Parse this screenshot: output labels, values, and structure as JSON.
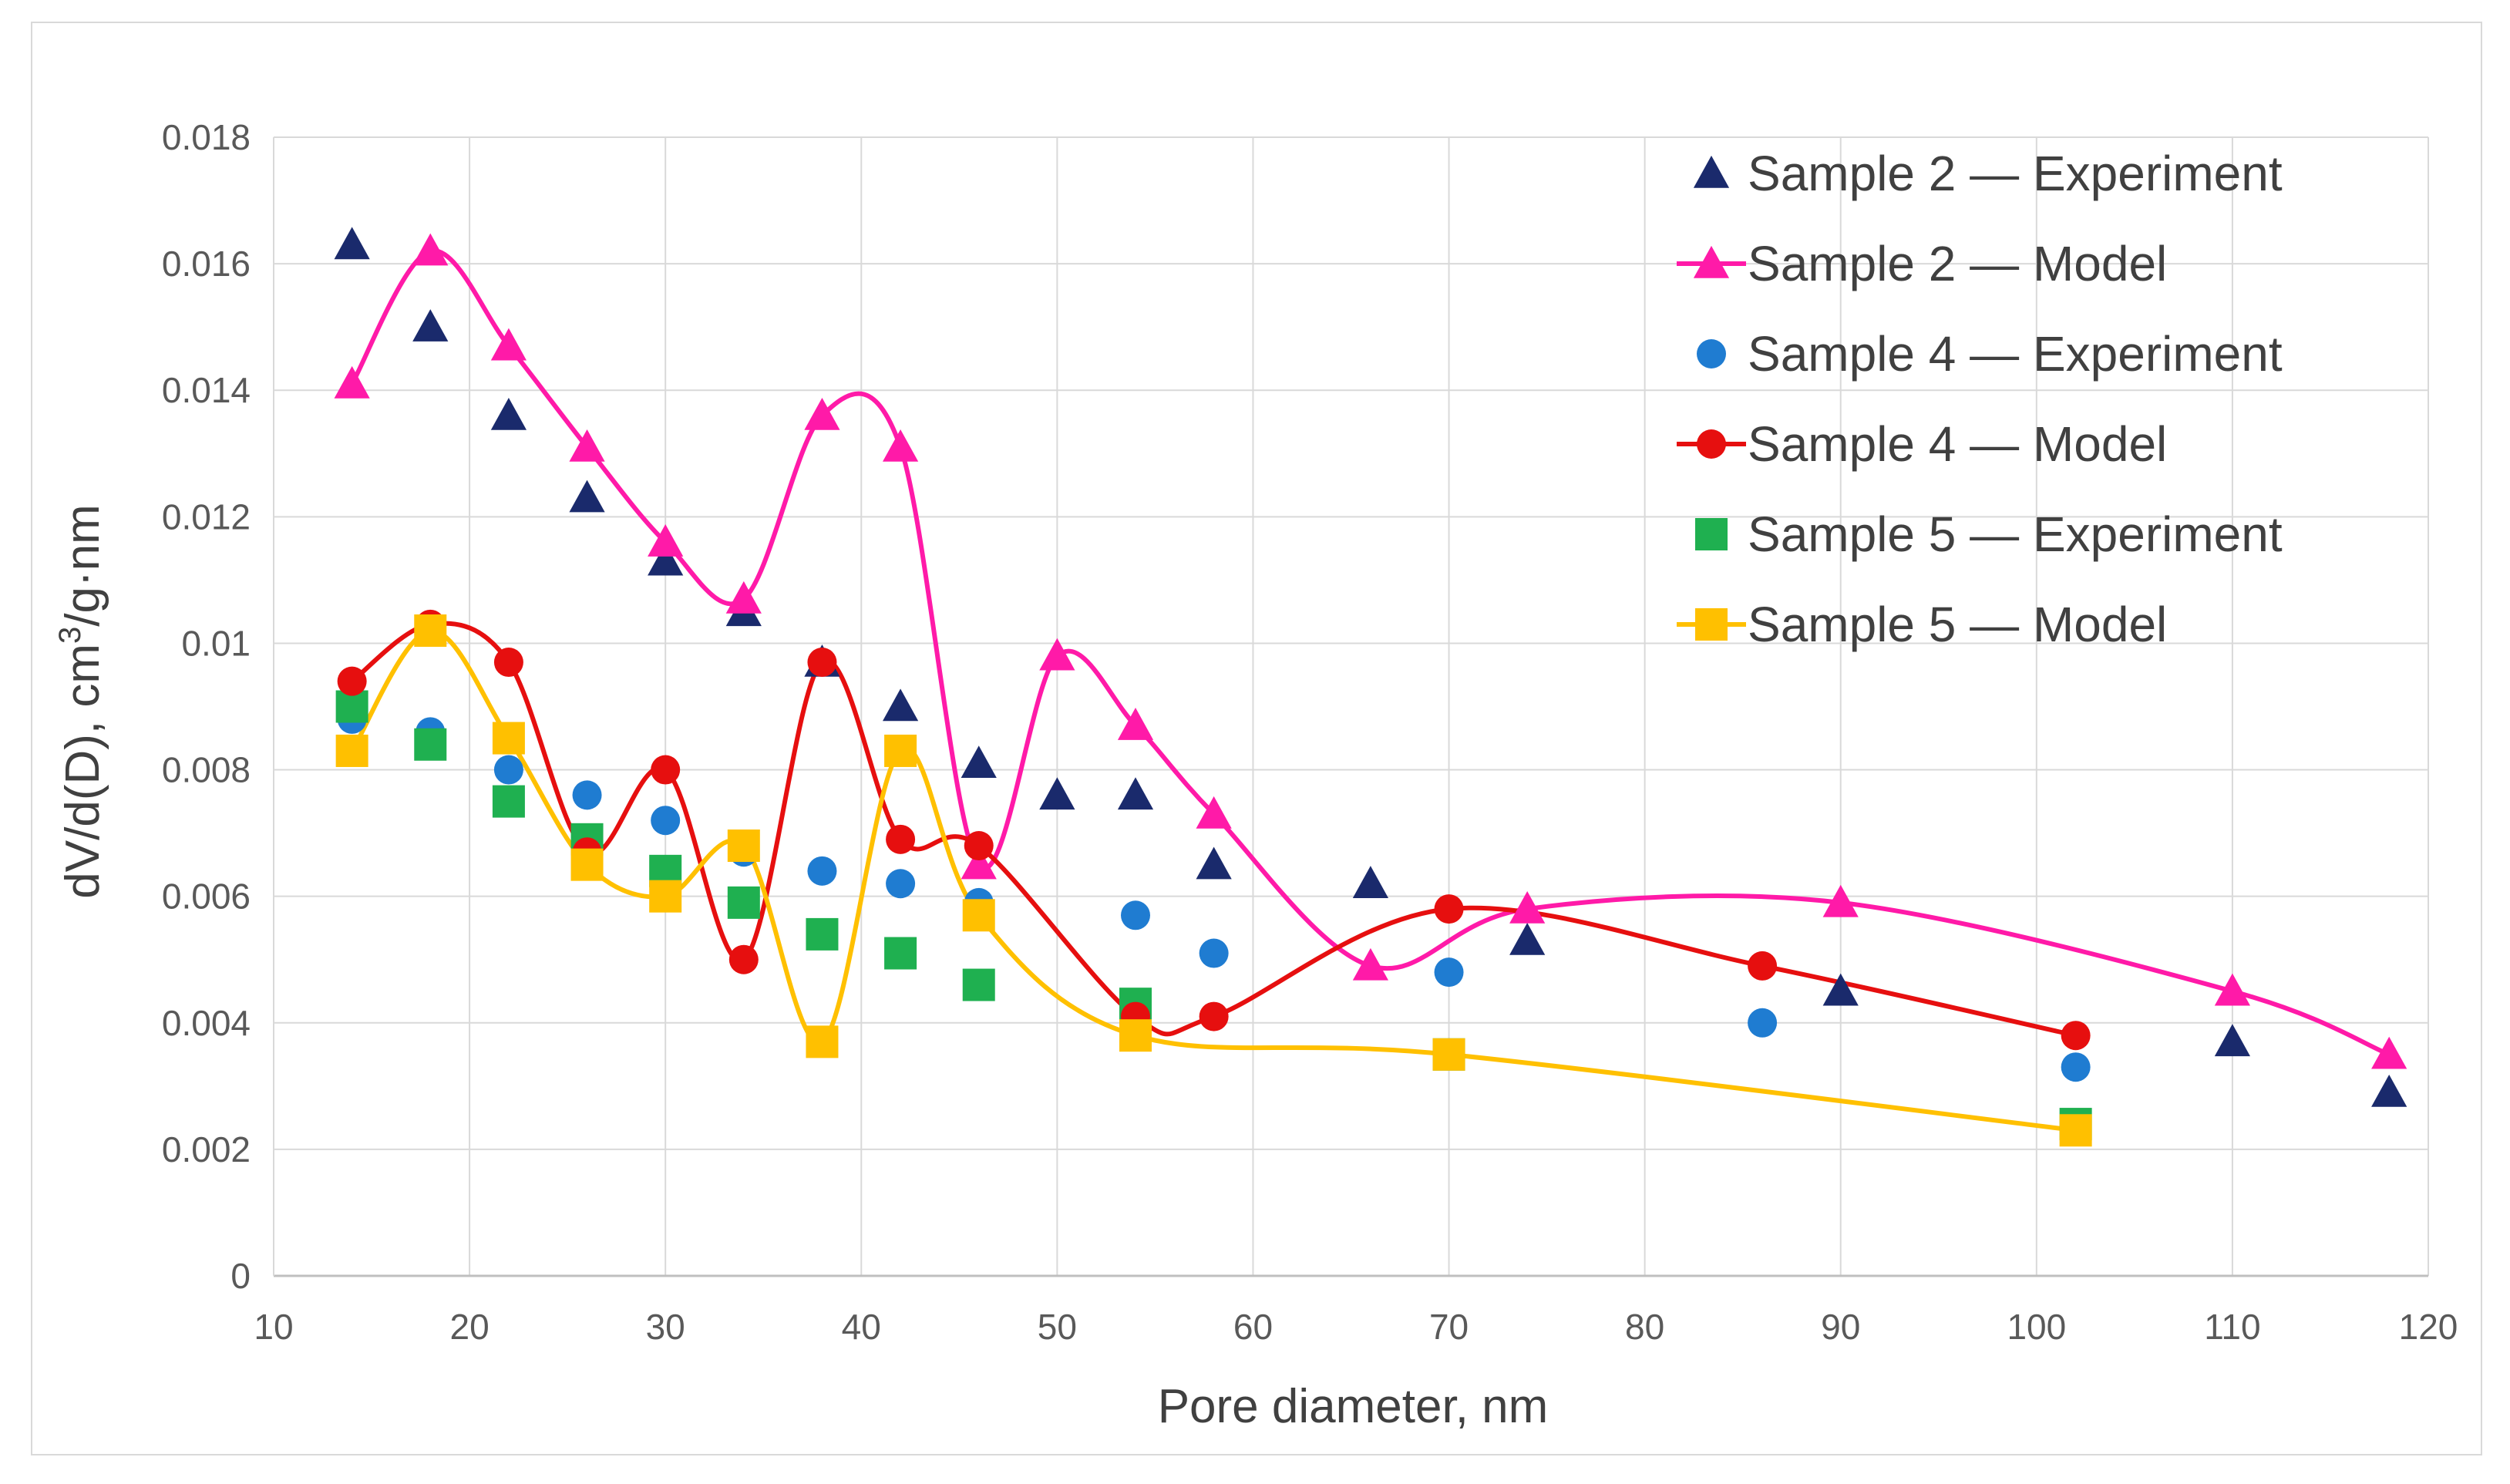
{
  "chart_data": {
    "type": "scatter",
    "title": "",
    "xlabel": "Pore diameter, nm",
    "ylabel_main": "dV/d(D), cm",
    "ylabel_sup": "3",
    "ylabel_tail": "/g·nm",
    "xlim": [
      10,
      120
    ],
    "ylim": [
      0,
      0.018
    ],
    "x_ticks": [
      10,
      20,
      30,
      40,
      50,
      60,
      70,
      80,
      90,
      100,
      110,
      120
    ],
    "y_ticks": [
      0,
      0.002,
      0.004,
      0.006,
      0.008,
      0.01,
      0.012,
      0.014,
      0.016,
      0.018
    ],
    "x_tick_labels": [
      "10",
      "20",
      "30",
      "40",
      "50",
      "60",
      "70",
      "80",
      "90",
      "100",
      "110",
      "120"
    ],
    "y_tick_labels": [
      "0",
      "0.002",
      "0.004",
      "0.006",
      "0.008",
      "0.01",
      "0.012",
      "0.014",
      "0.016",
      "0.018"
    ],
    "grid": true,
    "legend_position": "top-right",
    "series": [
      {
        "name": "Sample 2 — Experiment",
        "marker": "triangle",
        "line": false,
        "color": "#1a2a6c",
        "x": [
          14,
          18,
          22,
          26,
          30,
          34,
          38,
          42,
          46,
          50,
          54,
          58,
          66,
          74,
          90,
          110,
          118
        ],
        "y": [
          0.0163,
          0.015,
          0.0136,
          0.0123,
          0.0113,
          0.0105,
          0.0097,
          0.009,
          0.0081,
          0.0076,
          0.0076,
          0.0065,
          0.0062,
          0.0053,
          0.0045,
          0.0037,
          0.0029
        ]
      },
      {
        "name": "Sample 2 — Model",
        "marker": "triangle",
        "line": true,
        "color": "#ff1aa8",
        "x": [
          14,
          18,
          22,
          26,
          30,
          34,
          38,
          42,
          46,
          50,
          54,
          58,
          66,
          74,
          90,
          110,
          118
        ],
        "y": [
          0.0141,
          0.0162,
          0.0147,
          0.0131,
          0.0116,
          0.0107,
          0.0136,
          0.0131,
          0.0065,
          0.0098,
          0.0087,
          0.0073,
          0.0049,
          0.0058,
          0.0059,
          0.0045,
          0.0035
        ]
      },
      {
        "name": "Sample 4 — Experiment",
        "marker": "circle",
        "line": false,
        "color": "#1f7cd1",
        "x": [
          14,
          18,
          22,
          26,
          30,
          34,
          38,
          42,
          46,
          54,
          58,
          70,
          86,
          102
        ],
        "y": [
          0.0088,
          0.0086,
          0.008,
          0.0076,
          0.0072,
          0.0067,
          0.0064,
          0.0062,
          0.0059,
          0.0057,
          0.0051,
          0.0048,
          0.004,
          0.0033
        ]
      },
      {
        "name": "Sample 4 — Model",
        "marker": "circle",
        "line": true,
        "color": "#e60f0f",
        "x": [
          14,
          18,
          22,
          26,
          30,
          34,
          38,
          42,
          46,
          54,
          58,
          70,
          86,
          102
        ],
        "y": [
          0.0094,
          0.0103,
          0.0097,
          0.0067,
          0.008,
          0.005,
          0.0097,
          0.0069,
          0.0068,
          0.0041,
          0.0041,
          0.0058,
          0.0049,
          0.0038
        ]
      },
      {
        "name": "Sample 5 — Experiment",
        "marker": "square",
        "line": false,
        "color": "#1fb050",
        "x": [
          14,
          18,
          22,
          26,
          30,
          34,
          38,
          42,
          46,
          54,
          70,
          102
        ],
        "y": [
          0.009,
          0.0084,
          0.0075,
          0.0069,
          0.0064,
          0.0059,
          0.0054,
          0.0051,
          0.0046,
          0.0043,
          0.0035,
          0.0024
        ]
      },
      {
        "name": "Sample 5 — Model",
        "marker": "square",
        "line": true,
        "color": "#ffc000",
        "x": [
          14,
          18,
          22,
          26,
          30,
          34,
          38,
          42,
          46,
          54,
          70,
          102
        ],
        "y": [
          0.0083,
          0.0102,
          0.0085,
          0.0065,
          0.006,
          0.0068,
          0.0037,
          0.0083,
          0.0057,
          0.0038,
          0.0035,
          0.0023
        ]
      }
    ]
  }
}
